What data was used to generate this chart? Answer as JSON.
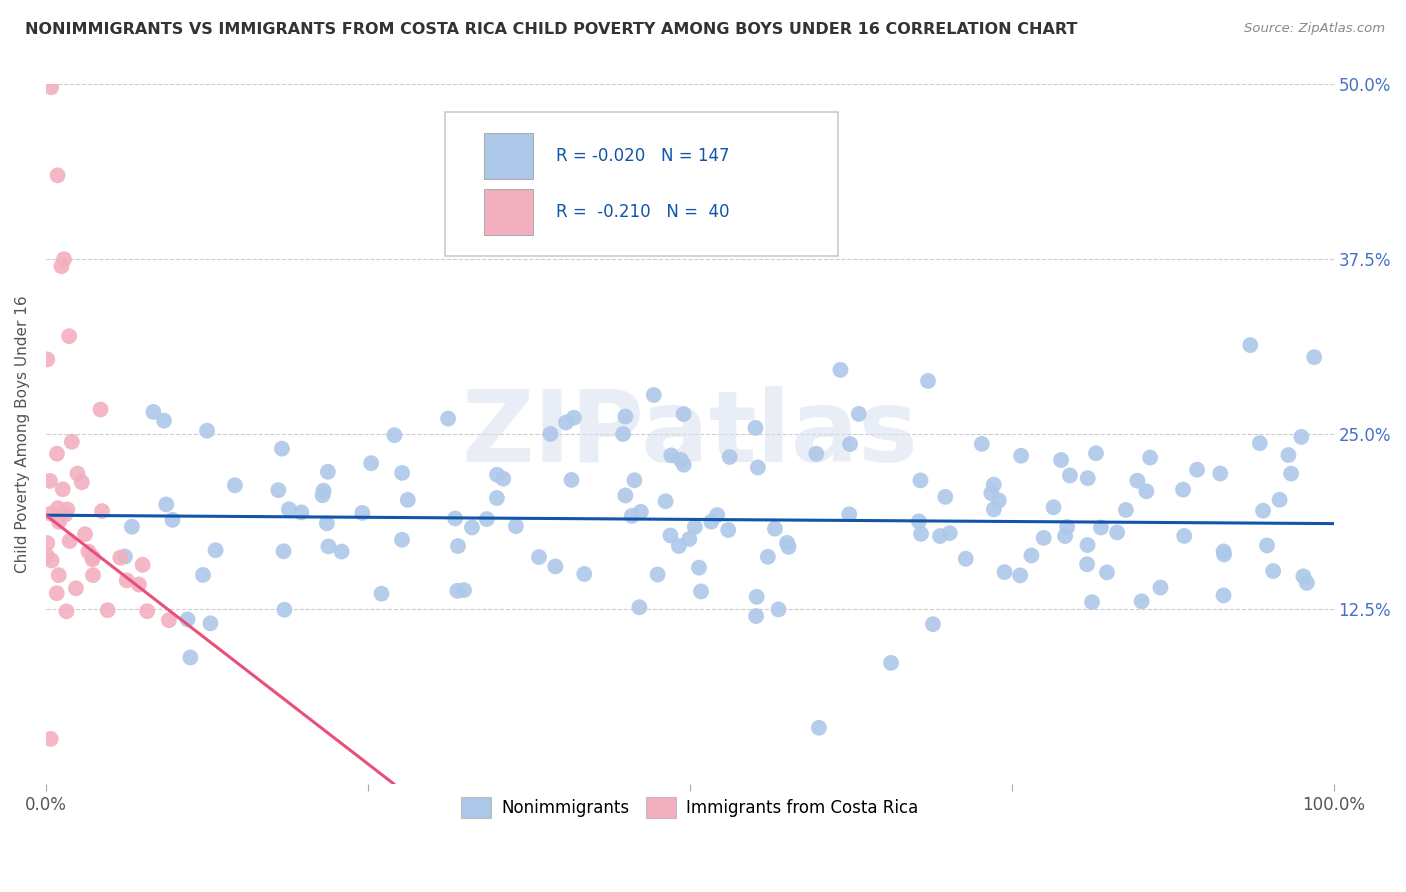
{
  "title": "NONIMMIGRANTS VS IMMIGRANTS FROM COSTA RICA CHILD POVERTY AMONG BOYS UNDER 16 CORRELATION CHART",
  "source": "Source: ZipAtlas.com",
  "ylabel": "Child Poverty Among Boys Under 16",
  "xlim": [
    0,
    1.0
  ],
  "ylim": [
    0,
    0.5
  ],
  "xticks": [
    0.0,
    0.25,
    0.5,
    0.75,
    1.0
  ],
  "xticklabels": [
    "0.0%",
    "",
    "",
    "",
    "100.0%"
  ],
  "yticks": [
    0.0,
    0.125,
    0.25,
    0.375,
    0.5
  ],
  "yticklabels_right": [
    "",
    "12.5%",
    "25.0%",
    "37.5%",
    "50.0%"
  ],
  "legend_labels": [
    "Nonimmigrants",
    "Immigrants from Costa Rica"
  ],
  "R_nonimm": -0.02,
  "N_nonimm": 147,
  "R_imm": -0.21,
  "N_imm": 40,
  "color_nonimm": "#adc8e8",
  "color_imm": "#f2afc0",
  "line_color_nonimm": "#1155aa",
  "line_color_imm": "#e8507a",
  "background_color": "#ffffff",
  "watermark": "ZIPatlas",
  "tick_color": "#4472c4",
  "grid_color": "#cccccc",
  "title_color": "#333333",
  "source_color": "#888888",
  "ylabel_color": "#555555",
  "line_nonimm_y_start": 0.192,
  "line_nonimm_y_end": 0.186,
  "line_imm_x_start": 0.0,
  "line_imm_y_start": 0.192,
  "line_imm_x_end": 0.27,
  "line_imm_y_end": 0.0
}
